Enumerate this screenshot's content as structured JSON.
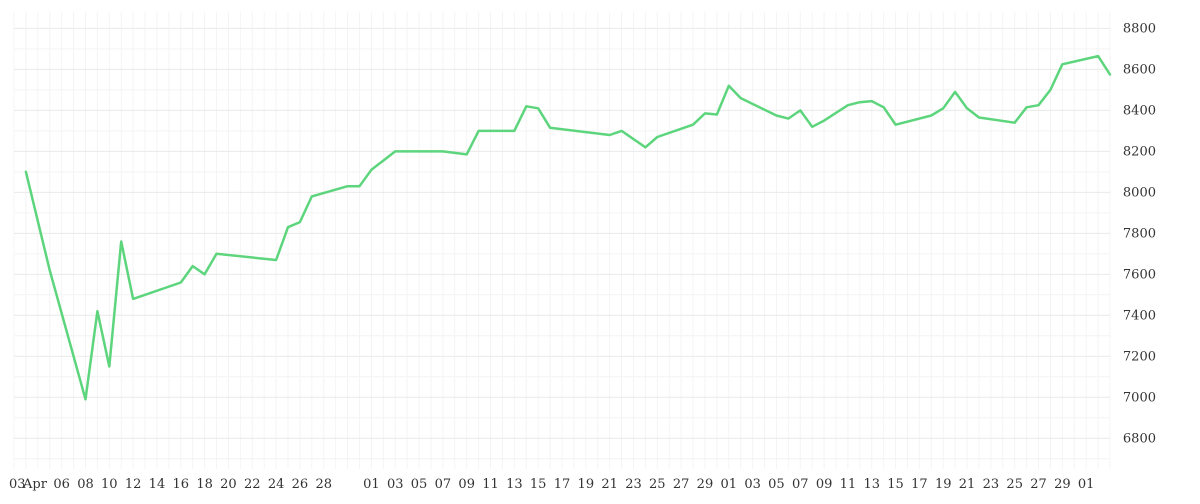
{
  "chart_data": {
    "type": "line",
    "title": "",
    "xlabel": "",
    "ylabel": "",
    "y_axis_position": "right",
    "grid": true,
    "legend": "none",
    "ylim": [
      6650,
      8880
    ],
    "y_ticks": [
      6800,
      7000,
      7200,
      7400,
      7600,
      7800,
      8000,
      8200,
      8400,
      8600,
      8800
    ],
    "x_tick_labels": [
      "03",
      "Apr",
      "06",
      "08",
      "10",
      "12",
      "14",
      "16",
      "18",
      "20",
      "22",
      "24",
      "26",
      "28",
      "01",
      "03",
      "05",
      "07",
      "09",
      "11",
      "13",
      "15",
      "17",
      "19",
      "21",
      "23",
      "25",
      "27",
      "29",
      "01",
      "03",
      "05",
      "07",
      "09",
      "11",
      "13",
      "15",
      "17",
      "19",
      "21",
      "23",
      "25",
      "27",
      "29",
      "01"
    ],
    "x_tick_dates": [
      "2023-03-03",
      "2023-03-04",
      "2023-03-06",
      "2023-03-08",
      "2023-03-10",
      "2023-03-12",
      "2023-03-14",
      "2023-03-16",
      "2023-03-18",
      "2023-03-20",
      "2023-03-22",
      "2023-03-24",
      "2023-03-26",
      "2023-03-28",
      "2023-04-01",
      "2023-04-03",
      "2023-04-05",
      "2023-04-07",
      "2023-04-09",
      "2023-04-11",
      "2023-04-13",
      "2023-04-15",
      "2023-04-17",
      "2023-04-19",
      "2023-04-21",
      "2023-04-23",
      "2023-04-25",
      "2023-04-27",
      "2023-04-29",
      "2023-05-01",
      "2023-05-03",
      "2023-05-05",
      "2023-05-07",
      "2023-05-09",
      "2023-05-11",
      "2023-05-13",
      "2023-05-15",
      "2023-05-17",
      "2023-05-19",
      "2023-05-21",
      "2023-05-23",
      "2023-05-25",
      "2023-05-27",
      "2023-05-29",
      "2023-05-31"
    ],
    "xlim": [
      "2023-03-02",
      "2023-06-02"
    ],
    "series": [
      {
        "color": "#5dd57c",
        "x": [
          "2023-03-03",
          "2023-03-05",
          "2023-03-08",
          "2023-03-09",
          "2023-03-10",
          "2023-03-11",
          "2023-03-12",
          "2023-03-16",
          "2023-03-17",
          "2023-03-18",
          "2023-03-19",
          "2023-03-24",
          "2023-03-25",
          "2023-03-26",
          "2023-03-27",
          "2023-03-30",
          "2023-03-31",
          "2023-04-01",
          "2023-04-03",
          "2023-04-07",
          "2023-04-09",
          "2023-04-10",
          "2023-04-13",
          "2023-04-14",
          "2023-04-15",
          "2023-04-16",
          "2023-04-21",
          "2023-04-22",
          "2023-04-24",
          "2023-04-25",
          "2023-04-28",
          "2023-04-29",
          "2023-04-30",
          "2023-05-01",
          "2023-05-02",
          "2023-05-05",
          "2023-05-06",
          "2023-05-07",
          "2023-05-08",
          "2023-05-09",
          "2023-05-11",
          "2023-05-12",
          "2023-05-13",
          "2023-05-14",
          "2023-05-15",
          "2023-05-18",
          "2023-05-19",
          "2023-05-20",
          "2023-05-21",
          "2023-05-22",
          "2023-05-25",
          "2023-05-26",
          "2023-05-27",
          "2023-05-28",
          "2023-05-29",
          "2023-06-01",
          "2023-06-02"
        ],
        "y": [
          8100,
          7620,
          6990,
          7420,
          7150,
          7760,
          7480,
          7560,
          7640,
          7600,
          7700,
          7670,
          7830,
          7855,
          7980,
          8030,
          8030,
          8110,
          8200,
          8200,
          8185,
          8300,
          8300,
          8420,
          8410,
          8315,
          8280,
          8300,
          8220,
          8270,
          8330,
          8385,
          8380,
          8520,
          8460,
          8375,
          8360,
          8400,
          8320,
          8350,
          8425,
          8440,
          8445,
          8415,
          8330,
          8375,
          8410,
          8490,
          8410,
          8365,
          8340,
          8415,
          8425,
          8500,
          8625,
          8665,
          8575
        ]
      }
    ]
  }
}
